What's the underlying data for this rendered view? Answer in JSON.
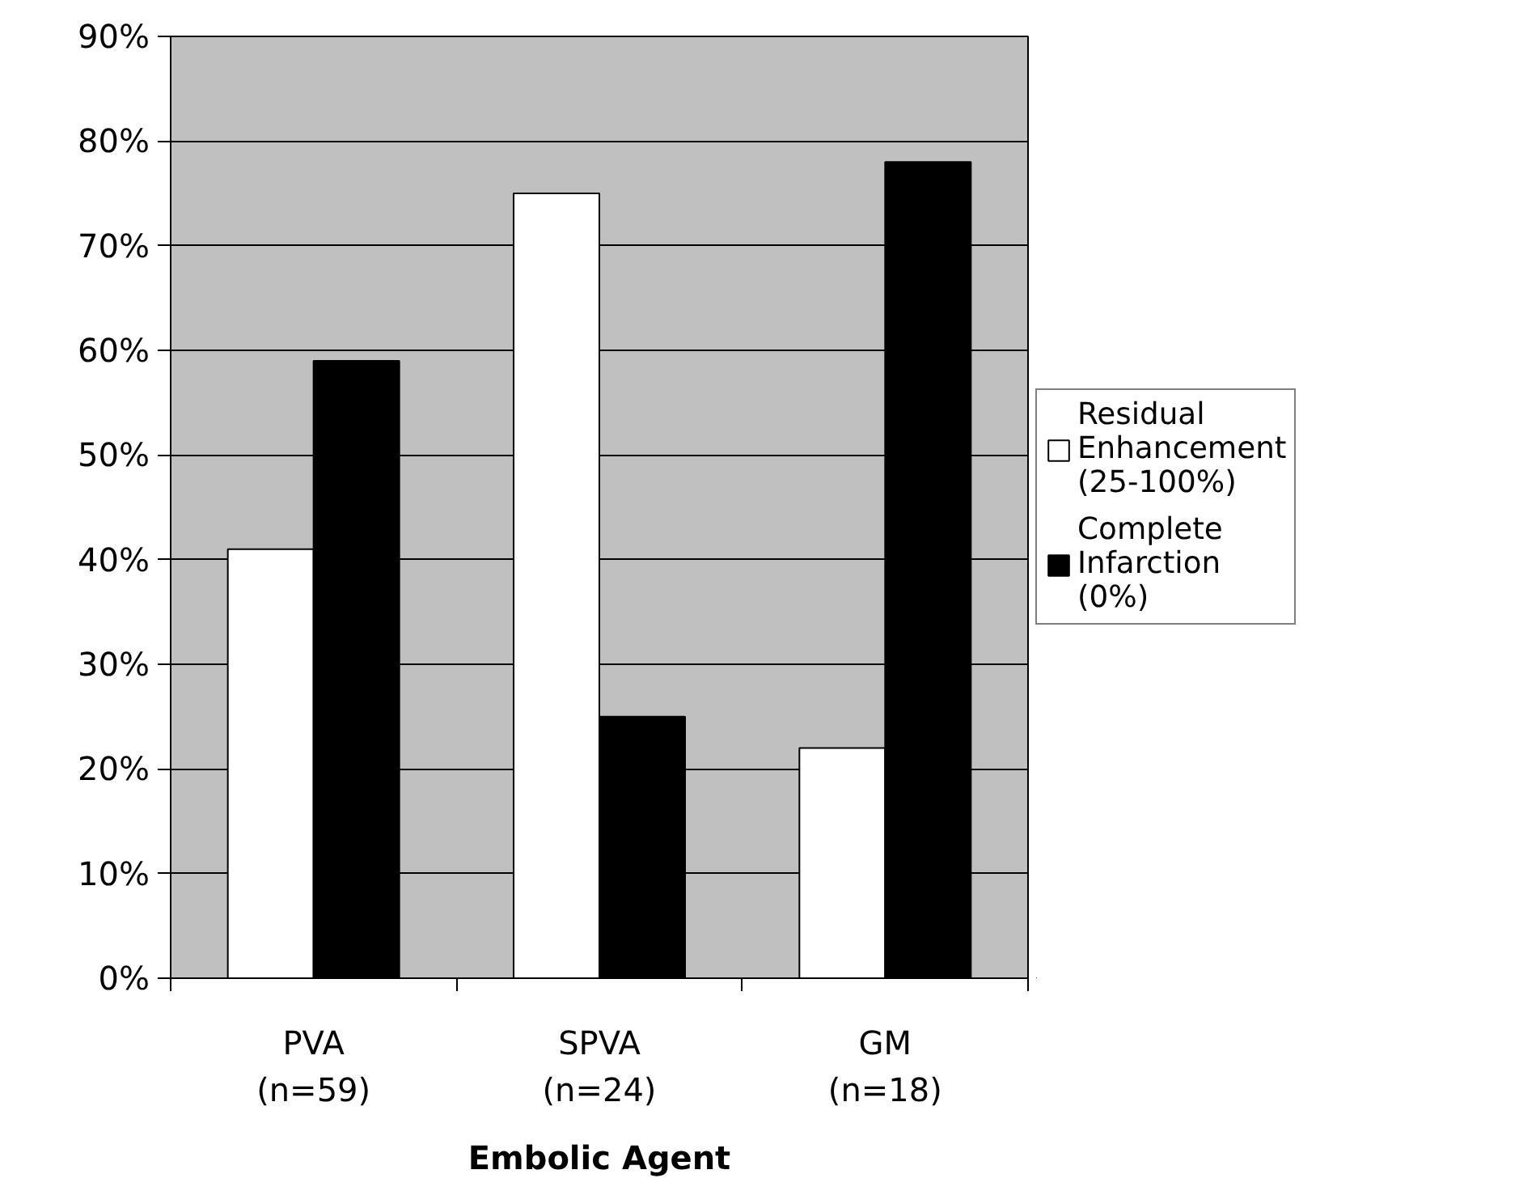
{
  "chart_data": {
    "type": "bar",
    "xlabel": "Embolic Agent",
    "categories": [
      "PVA (n=59)",
      "SPVA (n=24)",
      "GM (n=18)"
    ],
    "series": [
      {
        "name": "Residual Enhancement (25-100%)",
        "color": "#ffffff",
        "values": [
          41,
          75,
          22
        ]
      },
      {
        "name": "Complete Infarction (0%)",
        "color": "#000000",
        "values": [
          59,
          25,
          78
        ]
      }
    ],
    "ylim": [
      0,
      90
    ],
    "yticks": [
      {
        "value": 0,
        "label": "0%"
      },
      {
        "value": 10,
        "label": "10%"
      },
      {
        "value": 20,
        "label": "20%"
      },
      {
        "value": 30,
        "label": "30%"
      },
      {
        "value": 40,
        "label": "40%"
      },
      {
        "value": 50,
        "label": "50%"
      },
      {
        "value": 60,
        "label": "60%"
      },
      {
        "value": 70,
        "label": "70%"
      },
      {
        "value": 80,
        "label": "80%"
      },
      {
        "value": 90,
        "label": "90%"
      }
    ],
    "grid": "y",
    "legend": "right"
  }
}
